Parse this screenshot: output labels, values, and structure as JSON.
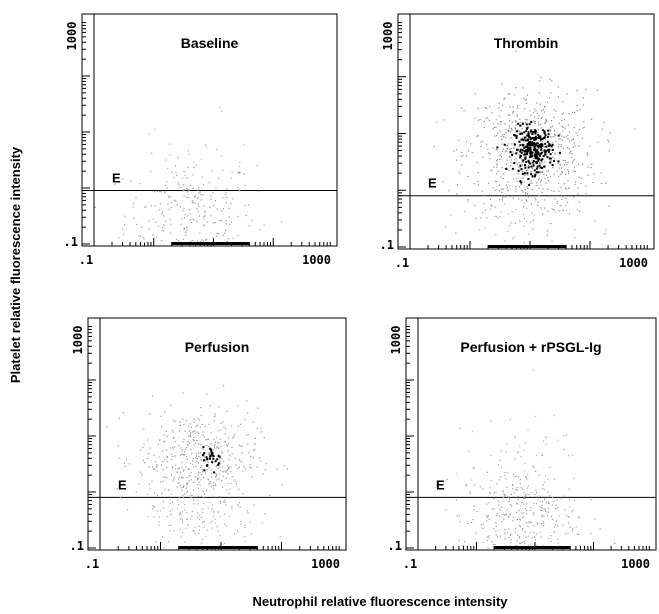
{
  "chart_data": {
    "type": "scatter",
    "xlabel": "Neutrophil relative fluorescence intensity",
    "ylabel": "Platelet relative fluorescence intensity",
    "xscale": "log",
    "yscale": "log",
    "xlim": [
      0.1,
      1000
    ],
    "ylim": [
      0.1,
      1000
    ],
    "x_ticks": [
      ".1",
      "1000"
    ],
    "y_ticks": [
      ".1",
      "1000"
    ],
    "gate_label": "E",
    "panels": [
      {
        "title": "Baseline",
        "gate_threshold": 0.9,
        "clusters": [
          {
            "x_center": 4,
            "y_center": 0.35,
            "x_spread": 0.55,
            "y_spread": 0.5,
            "n": 260,
            "color": "#9a9a9a"
          },
          {
            "x_center": 5,
            "y_center": 2.5,
            "x_spread": 0.45,
            "y_spread": 0.45,
            "n": 30,
            "color": "#b5b5b5"
          }
        ]
      },
      {
        "title": "Thrombin",
        "gate_threshold": 0.8,
        "clusters": [
          {
            "x_center": 10,
            "y_center": 4.5,
            "x_spread": 0.55,
            "y_spread": 0.55,
            "n": 650,
            "color": "#8c8c8c"
          },
          {
            "x_center": 11,
            "y_center": 5.5,
            "x_spread": 0.16,
            "y_spread": 0.2,
            "n": 260,
            "color": "#000000"
          },
          {
            "x_center": 8,
            "y_center": 0.4,
            "x_spread": 0.5,
            "y_spread": 0.4,
            "n": 80,
            "color": "#aaaaaa"
          }
        ]
      },
      {
        "title": "Perfusion",
        "gate_threshold": 0.8,
        "clusters": [
          {
            "x_center": 4,
            "y_center": 4,
            "x_spread": 0.5,
            "y_spread": 0.45,
            "n": 460,
            "color": "#999999"
          },
          {
            "x_center": 7,
            "y_center": 4.2,
            "x_spread": 0.08,
            "y_spread": 0.1,
            "n": 30,
            "color": "#000000"
          },
          {
            "x_center": 4,
            "y_center": 0.35,
            "x_spread": 0.5,
            "y_spread": 0.4,
            "n": 160,
            "color": "#aaaaaa"
          }
        ]
      },
      {
        "title": "Perfusion + rPSGL-Ig",
        "gate_threshold": 0.8,
        "clusters": [
          {
            "x_center": 5,
            "y_center": 0.35,
            "x_spread": 0.5,
            "y_spread": 0.45,
            "n": 320,
            "color": "#999999"
          },
          {
            "x_center": 6,
            "y_center": 2.5,
            "x_spread": 0.5,
            "y_spread": 0.5,
            "n": 70,
            "color": "#b0b0b0"
          }
        ]
      }
    ],
    "grid": false
  }
}
